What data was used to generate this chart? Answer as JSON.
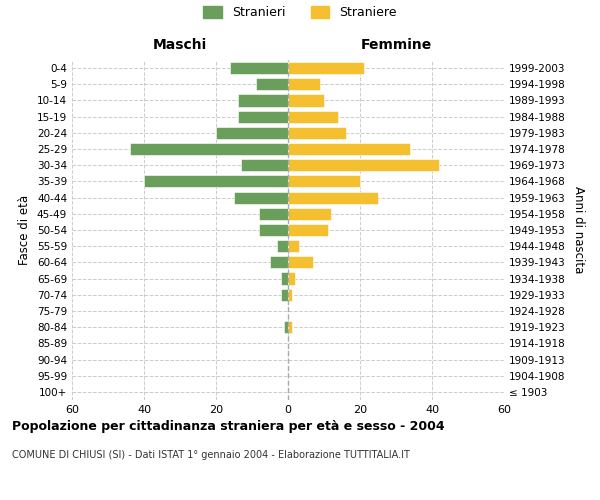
{
  "age_groups": [
    "100+",
    "95-99",
    "90-94",
    "85-89",
    "80-84",
    "75-79",
    "70-74",
    "65-69",
    "60-64",
    "55-59",
    "50-54",
    "45-49",
    "40-44",
    "35-39",
    "30-34",
    "25-29",
    "20-24",
    "15-19",
    "10-14",
    "5-9",
    "0-4"
  ],
  "birth_years": [
    "≤ 1903",
    "1904-1908",
    "1909-1913",
    "1914-1918",
    "1919-1923",
    "1924-1928",
    "1929-1933",
    "1934-1938",
    "1939-1943",
    "1944-1948",
    "1949-1953",
    "1954-1958",
    "1959-1963",
    "1964-1968",
    "1969-1973",
    "1974-1978",
    "1979-1983",
    "1984-1988",
    "1989-1993",
    "1994-1998",
    "1999-2003"
  ],
  "maschi": [
    0,
    0,
    0,
    0,
    1,
    0,
    2,
    2,
    5,
    3,
    8,
    8,
    15,
    40,
    13,
    44,
    20,
    14,
    14,
    9,
    16
  ],
  "femmine": [
    0,
    0,
    0,
    0,
    1,
    0,
    1,
    2,
    7,
    3,
    11,
    12,
    25,
    20,
    42,
    34,
    16,
    14,
    10,
    9,
    21
  ],
  "male_color": "#6a9e5b",
  "female_color": "#f5c030",
  "background_color": "#ffffff",
  "grid_color": "#cccccc",
  "title": "Popolazione per cittadinanza straniera per età e sesso - 2004",
  "subtitle": "COMUNE DI CHIUSI (SI) - Dati ISTAT 1° gennaio 2004 - Elaborazione TUTTITALIA.IT",
  "legend_stranieri": "Stranieri",
  "legend_straniere": "Straniere",
  "xlabel_left": "Maschi",
  "xlabel_right": "Femmine",
  "ylabel_left": "Fasce di età",
  "ylabel_right": "Anni di nascita",
  "xlim": 60,
  "fig_width": 6.0,
  "fig_height": 5.0,
  "dpi": 100
}
